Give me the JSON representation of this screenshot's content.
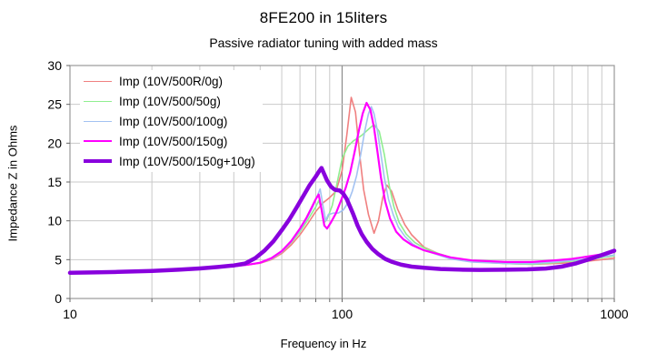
{
  "title": "8FE200 in 15liters",
  "subtitle": "Passive radiator tuning with added mass",
  "chart_data": {
    "type": "line",
    "title": "8FE200 in 15liters",
    "subtitle": "Passive radiator tuning with added mass",
    "xlabel": "Frequency in Hz",
    "ylabel": "Impedance Z in Ohms",
    "x_scale": "log",
    "xlim": [
      10,
      1000
    ],
    "ylim": [
      0,
      30
    ],
    "x_ticks": [
      10,
      100,
      1000
    ],
    "x_tick_labels": [
      "10",
      "100",
      "1000"
    ],
    "y_ticks": [
      0,
      5,
      10,
      15,
      20,
      25,
      30
    ],
    "grid": true,
    "legend_position": "top-left",
    "colors": {
      "grid_minor": "#c9c9c9",
      "grid_emphasis": "#8c8c8c",
      "frame": "#999999",
      "tick": "#666666",
      "text": "#000000"
    },
    "series": [
      {
        "name": "Imp (10V/500R/0g)",
        "color": "#F08080",
        "width": 1.6,
        "points": [
          [
            10,
            3.3
          ],
          [
            12,
            3.35
          ],
          [
            15,
            3.4
          ],
          [
            20,
            3.55
          ],
          [
            25,
            3.7
          ],
          [
            30,
            3.85
          ],
          [
            35,
            4.0
          ],
          [
            40,
            4.15
          ],
          [
            45,
            4.35
          ],
          [
            50,
            4.55
          ],
          [
            55,
            5.0
          ],
          [
            60,
            5.8
          ],
          [
            65,
            6.9
          ],
          [
            70,
            8.2
          ],
          [
            75,
            9.7
          ],
          [
            80,
            11.2
          ],
          [
            85,
            12.3
          ],
          [
            90,
            13.0
          ],
          [
            95,
            13.8
          ],
          [
            100,
            16.5
          ],
          [
            104,
            21.0
          ],
          [
            108,
            25.9
          ],
          [
            112,
            24.0
          ],
          [
            116,
            18.5
          ],
          [
            120,
            14.0
          ],
          [
            125,
            10.8
          ],
          [
            131,
            8.4
          ],
          [
            136,
            10.0
          ],
          [
            141,
            13.0
          ],
          [
            146,
            14.6
          ],
          [
            152,
            13.8
          ],
          [
            160,
            11.5
          ],
          [
            170,
            9.5
          ],
          [
            180,
            8.2
          ],
          [
            200,
            6.6
          ],
          [
            225,
            5.8
          ],
          [
            250,
            5.3
          ],
          [
            300,
            4.8
          ],
          [
            350,
            4.6
          ],
          [
            400,
            4.5
          ],
          [
            500,
            4.4
          ],
          [
            600,
            4.5
          ],
          [
            700,
            4.6
          ],
          [
            800,
            4.8
          ],
          [
            900,
            5.0
          ],
          [
            1000,
            5.2
          ]
        ]
      },
      {
        "name": "Imp (10V/500/50g)",
        "color": "#90EE90",
        "width": 1.6,
        "points": [
          [
            10,
            3.3
          ],
          [
            12,
            3.35
          ],
          [
            15,
            3.4
          ],
          [
            20,
            3.55
          ],
          [
            25,
            3.7
          ],
          [
            30,
            3.85
          ],
          [
            35,
            4.0
          ],
          [
            40,
            4.15
          ],
          [
            45,
            4.35
          ],
          [
            50,
            4.6
          ],
          [
            55,
            5.1
          ],
          [
            60,
            6.0
          ],
          [
            65,
            7.2
          ],
          [
            70,
            8.6
          ],
          [
            75,
            10.2
          ],
          [
            80,
            11.8
          ],
          [
            82,
            12.6
          ],
          [
            84,
            11.5
          ],
          [
            86,
            9.8
          ],
          [
            88,
            10.2
          ],
          [
            92,
            12.0
          ],
          [
            96,
            15.0
          ],
          [
            100,
            18.0
          ],
          [
            105,
            19.6
          ],
          [
            110,
            20.3
          ],
          [
            118,
            21.0
          ],
          [
            125,
            21.8
          ],
          [
            131,
            22.4
          ],
          [
            137,
            21.5
          ],
          [
            143,
            18.5
          ],
          [
            149,
            14.5
          ],
          [
            155,
            11.8
          ],
          [
            162,
            9.8
          ],
          [
            172,
            8.3
          ],
          [
            185,
            7.2
          ],
          [
            200,
            6.5
          ],
          [
            225,
            5.8
          ],
          [
            250,
            5.3
          ],
          [
            300,
            4.8
          ],
          [
            400,
            4.5
          ],
          [
            500,
            4.4
          ],
          [
            600,
            4.6
          ],
          [
            800,
            5.0
          ],
          [
            1000,
            5.5
          ]
        ]
      },
      {
        "name": "Imp (10V/500/100g)",
        "color": "#A3C2F2",
        "width": 1.6,
        "points": [
          [
            10,
            3.3
          ],
          [
            12,
            3.35
          ],
          [
            15,
            3.4
          ],
          [
            20,
            3.55
          ],
          [
            25,
            3.7
          ],
          [
            30,
            3.85
          ],
          [
            35,
            4.0
          ],
          [
            40,
            4.15
          ],
          [
            45,
            4.35
          ],
          [
            50,
            4.6
          ],
          [
            55,
            5.1
          ],
          [
            60,
            6.0
          ],
          [
            65,
            7.3
          ],
          [
            70,
            8.8
          ],
          [
            75,
            10.6
          ],
          [
            78,
            11.8
          ],
          [
            81,
            13.2
          ],
          [
            83,
            14.1
          ],
          [
            85,
            12.0
          ],
          [
            87,
            10.0
          ],
          [
            89,
            10.8
          ],
          [
            93,
            11.0
          ],
          [
            97,
            11.0
          ],
          [
            101,
            11.4
          ],
          [
            105,
            12.3
          ],
          [
            109,
            13.8
          ],
          [
            113,
            15.8
          ],
          [
            117,
            18.5
          ],
          [
            121,
            21.5
          ],
          [
            125,
            23.8
          ],
          [
            128,
            24.7
          ],
          [
            131,
            23.8
          ],
          [
            135,
            21.5
          ],
          [
            139,
            18.5
          ],
          [
            143,
            15.5
          ],
          [
            148,
            12.8
          ],
          [
            154,
            10.8
          ],
          [
            161,
            9.2
          ],
          [
            170,
            8.0
          ],
          [
            182,
            7.0
          ],
          [
            200,
            6.2
          ],
          [
            250,
            5.1
          ],
          [
            300,
            4.7
          ],
          [
            400,
            4.5
          ],
          [
            500,
            4.5
          ],
          [
            600,
            4.7
          ],
          [
            800,
            5.1
          ],
          [
            1000,
            5.6
          ]
        ]
      },
      {
        "name": "Imp (10V/500/150g)",
        "color": "#FF00FF",
        "width": 2.2,
        "points": [
          [
            10,
            3.3
          ],
          [
            12,
            3.35
          ],
          [
            15,
            3.4
          ],
          [
            20,
            3.55
          ],
          [
            25,
            3.7
          ],
          [
            30,
            3.85
          ],
          [
            35,
            4.0
          ],
          [
            40,
            4.15
          ],
          [
            45,
            4.35
          ],
          [
            50,
            4.6
          ],
          [
            55,
            5.2
          ],
          [
            60,
            6.1
          ],
          [
            65,
            7.4
          ],
          [
            70,
            9.0
          ],
          [
            74,
            10.4
          ],
          [
            77,
            11.6
          ],
          [
            80,
            12.8
          ],
          [
            82,
            13.4
          ],
          [
            84,
            11.5
          ],
          [
            86,
            9.4
          ],
          [
            88,
            9.0
          ],
          [
            91,
            9.8
          ],
          [
            95,
            11.0
          ],
          [
            99,
            12.6
          ],
          [
            103,
            14.2
          ],
          [
            107,
            16.2
          ],
          [
            111,
            18.8
          ],
          [
            115,
            21.5
          ],
          [
            119,
            23.8
          ],
          [
            123,
            25.2
          ],
          [
            127,
            24.3
          ],
          [
            131,
            22.0
          ],
          [
            135,
            18.8
          ],
          [
            139,
            15.5
          ],
          [
            144,
            12.5
          ],
          [
            150,
            10.3
          ],
          [
            158,
            8.6
          ],
          [
            168,
            7.6
          ],
          [
            180,
            6.9
          ],
          [
            200,
            6.2
          ],
          [
            250,
            5.3
          ],
          [
            300,
            4.9
          ],
          [
            400,
            4.7
          ],
          [
            500,
            4.7
          ],
          [
            600,
            4.9
          ],
          [
            700,
            5.1
          ],
          [
            800,
            5.4
          ],
          [
            900,
            5.7
          ],
          [
            1000,
            6.0
          ]
        ]
      },
      {
        "name": "Imp (10V/500/150g+10g)",
        "color": "#8800DD",
        "width": 4.5,
        "points": [
          [
            10,
            3.3
          ],
          [
            12,
            3.35
          ],
          [
            15,
            3.42
          ],
          [
            20,
            3.55
          ],
          [
            25,
            3.7
          ],
          [
            30,
            3.87
          ],
          [
            35,
            4.05
          ],
          [
            40,
            4.25
          ],
          [
            44,
            4.5
          ],
          [
            48,
            5.2
          ],
          [
            52,
            6.2
          ],
          [
            56,
            7.4
          ],
          [
            60,
            8.8
          ],
          [
            64,
            10.2
          ],
          [
            68,
            11.7
          ],
          [
            72,
            13.2
          ],
          [
            76,
            14.6
          ],
          [
            80,
            15.7
          ],
          [
            82,
            16.3
          ],
          [
            84,
            16.8
          ],
          [
            86,
            16.0
          ],
          [
            88,
            15.2
          ],
          [
            91,
            14.4
          ],
          [
            94,
            14.0
          ],
          [
            98,
            13.9
          ],
          [
            101,
            13.5
          ],
          [
            104,
            12.8
          ],
          [
            107,
            11.8
          ],
          [
            110,
            10.8
          ],
          [
            114,
            9.4
          ],
          [
            118,
            8.3
          ],
          [
            123,
            7.3
          ],
          [
            129,
            6.4
          ],
          [
            136,
            5.7
          ],
          [
            144,
            5.1
          ],
          [
            153,
            4.7
          ],
          [
            165,
            4.35
          ],
          [
            180,
            4.1
          ],
          [
            200,
            3.95
          ],
          [
            230,
            3.8
          ],
          [
            270,
            3.72
          ],
          [
            320,
            3.68
          ],
          [
            400,
            3.7
          ],
          [
            480,
            3.75
          ],
          [
            560,
            3.85
          ],
          [
            640,
            4.1
          ],
          [
            720,
            4.5
          ],
          [
            800,
            5.0
          ],
          [
            900,
            5.6
          ],
          [
            1000,
            6.15
          ]
        ]
      }
    ]
  }
}
